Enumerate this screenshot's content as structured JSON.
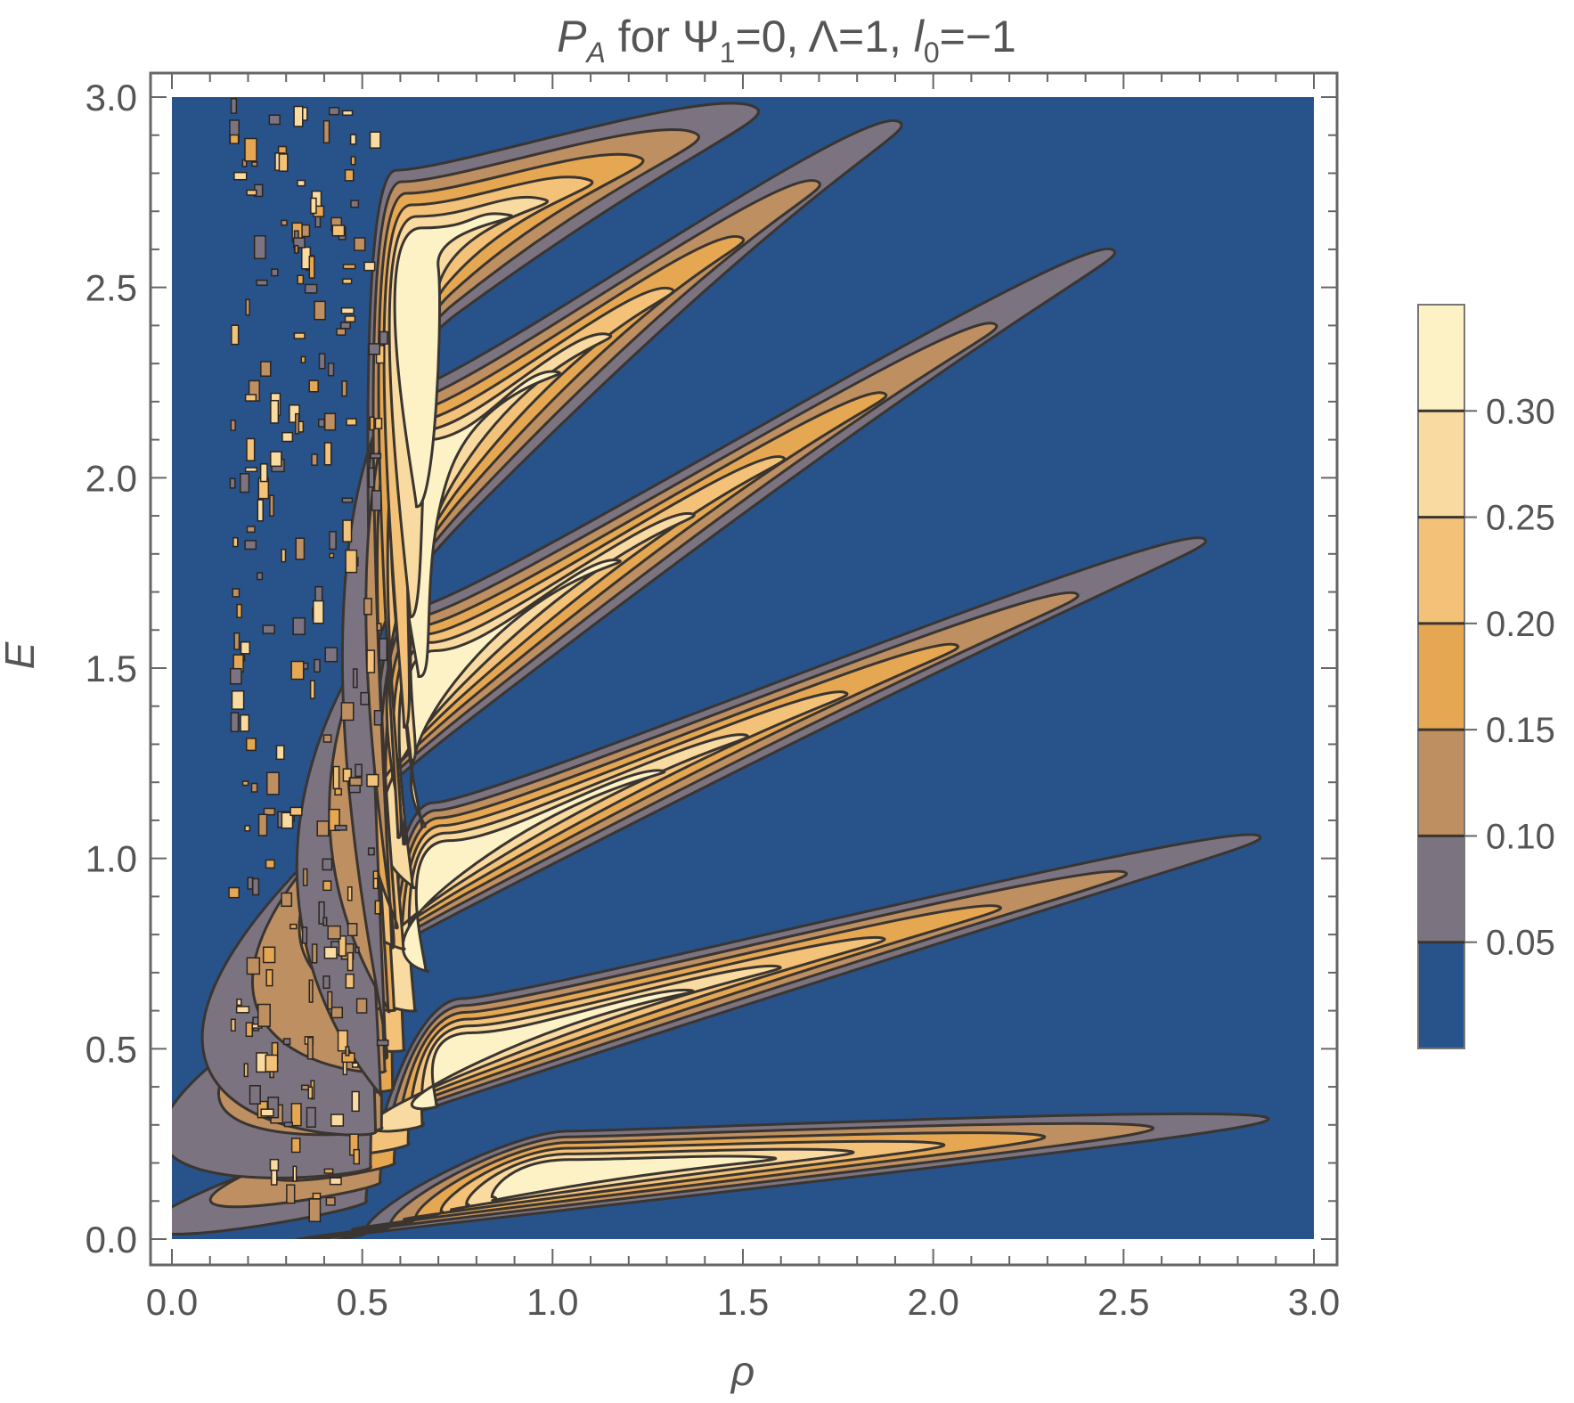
{
  "chart_data": {
    "type": "heatmap",
    "subtype": "filled contour plot",
    "title": {
      "symbol": "P",
      "symbol_sub": "A",
      "text_1": " for Ψ",
      "sub_1": "1",
      "text_2": "=0, Λ=1, ",
      "symbol_2": "l",
      "sub_2": "0",
      "text_3": "=−1"
    },
    "xlabel": "ρ",
    "ylabel": "E",
    "xlim": [
      0,
      3
    ],
    "ylim": [
      0,
      3
    ],
    "x_ticks": [
      "0.0",
      "0.5",
      "1.0",
      "1.5",
      "2.0",
      "2.5",
      "3.0"
    ],
    "y_ticks": [
      "0.0",
      "0.5",
      "1.0",
      "1.5",
      "2.0",
      "2.5",
      "3.0"
    ],
    "x_tick_values": [
      0,
      0.5,
      1,
      1.5,
      2,
      2.5,
      3
    ],
    "y_tick_values": [
      0,
      0.5,
      1,
      1.5,
      2,
      2.5,
      3
    ],
    "contour_levels": [
      0.05,
      0.1,
      0.15,
      0.2,
      0.25,
      0.3
    ],
    "level_colors": [
      "#27528a",
      "#7b7480",
      "#bd8f61",
      "#e6a752",
      "#f3c278",
      "#f9daa0",
      "#fdf1c6"
    ],
    "colorbar": {
      "labels": [
        "0.05",
        "0.10",
        "0.15",
        "0.20",
        "0.25",
        "0.30"
      ],
      "values": [
        0.05,
        0.1,
        0.15,
        0.2,
        0.25,
        0.3
      ],
      "range": [
        0,
        0.35
      ],
      "placement": "right"
    },
    "lobes": [
      {
        "peak_rho": 1.05,
        "peak_E": 0.17,
        "peak_P": 0.33,
        "tail_end_rho": 3.0,
        "tail_end_E": 0.33
      },
      {
        "peak_rho": 0.8,
        "peak_E": 0.5,
        "peak_P": 0.32,
        "tail_end_rho": 3.0,
        "tail_end_E": 1.1
      },
      {
        "peak_rho": 0.75,
        "peak_E": 1.0,
        "peak_P": 0.32,
        "tail_end_rho": 2.85,
        "tail_end_E": 1.9
      },
      {
        "peak_rho": 0.72,
        "peak_E": 1.5,
        "peak_P": 0.31,
        "tail_end_rho": 2.6,
        "tail_end_E": 2.68
      },
      {
        "peak_rho": 0.7,
        "peak_E": 2.05,
        "peak_P": 0.31,
        "tail_end_rho": 2.0,
        "tail_end_E": 3.0
      },
      {
        "peak_rho": 0.68,
        "peak_E": 2.6,
        "peak_P": 0.3,
        "tail_end_rho": 1.6,
        "tail_end_E": 3.0
      }
    ],
    "noise_region_rho": [
      0.15,
      0.55
    ],
    "grid": false,
    "legend": "none"
  }
}
